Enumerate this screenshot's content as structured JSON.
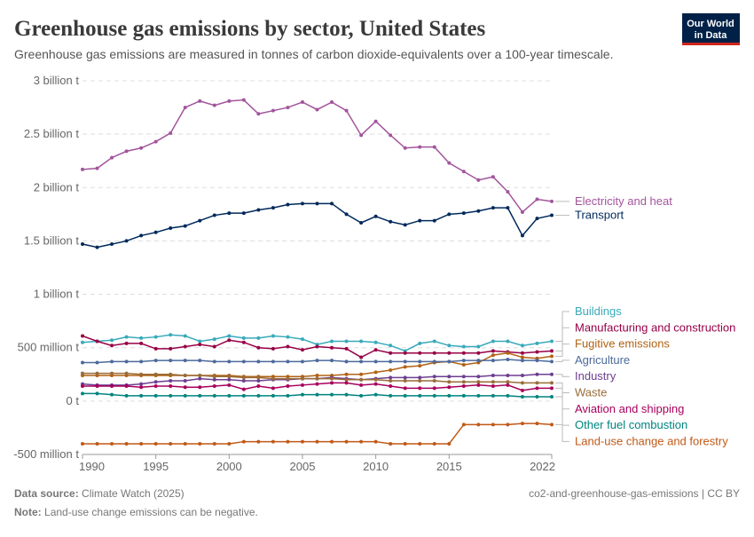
{
  "chart_data": {
    "type": "line",
    "title": "Greenhouse gas emissions by sector, United States",
    "subtitle": "Greenhouse gas emissions are measured in tonnes of carbon dioxide-equivalents over a 100-year timescale.",
    "source_label": "Data source:",
    "source": "Climate Watch (2025)",
    "note_label": "Note:",
    "note": "Land-use change emissions can be negative.",
    "credit": "co2-and-greenhouse-gas-emissions | CC BY",
    "logo": [
      "Our World",
      "in Data"
    ],
    "x": [
      1990,
      1991,
      1992,
      1993,
      1994,
      1995,
      1996,
      1997,
      1998,
      1999,
      2000,
      2001,
      2002,
      2003,
      2004,
      2005,
      2006,
      2007,
      2008,
      2009,
      2010,
      2011,
      2012,
      2013,
      2014,
      2015,
      2016,
      2017,
      2018,
      2019,
      2020,
      2021,
      2022
    ],
    "xlim": [
      1990,
      2022
    ],
    "xticks": [
      1990,
      1995,
      2000,
      2005,
      2010,
      2015,
      2022
    ],
    "ylim": [
      -500000000.0,
      3000000000.0
    ],
    "yticks": [
      {
        "value": -500000000.0,
        "label": "-500 million t"
      },
      {
        "value": 0,
        "label": "0 t"
      },
      {
        "value": 500000000.0,
        "label": "500 million t"
      },
      {
        "value": 1000000000.0,
        "label": "1 billion t"
      },
      {
        "value": 1500000000.0,
        "label": "1.5 billion t"
      },
      {
        "value": 2000000000.0,
        "label": "2 billion t"
      },
      {
        "value": 2500000000.0,
        "label": "2.5 billion t"
      },
      {
        "value": 3000000000.0,
        "label": "3 billion t"
      }
    ],
    "grid": true,
    "series": [
      {
        "name": "Electricity and heat",
        "color": "#a2559c",
        "values": [
          2170000000.0,
          2180000000.0,
          2280000000.0,
          2340000000.0,
          2370000000.0,
          2430000000.0,
          2510000000.0,
          2750000000.0,
          2810000000.0,
          2770000000.0,
          2810000000.0,
          2820000000.0,
          2690000000.0,
          2720000000.0,
          2750000000.0,
          2800000000.0,
          2730000000.0,
          2800000000.0,
          2720000000.0,
          2490000000.0,
          2620000000.0,
          2490000000.0,
          2370000000.0,
          2380000000.0,
          2380000000.0,
          2230000000.0,
          2150000000.0,
          2070000000.0,
          2100000000.0,
          1960000000.0,
          1770000000.0,
          1890000000.0,
          1870000000.0
        ]
      },
      {
        "name": "Transport",
        "color": "#00295b",
        "values": [
          1470000000.0,
          1440000000.0,
          1470000000.0,
          1500000000.0,
          1550000000.0,
          1580000000.0,
          1620000000.0,
          1640000000.0,
          1690000000.0,
          1740000000.0,
          1760000000.0,
          1760000000.0,
          1790000000.0,
          1810000000.0,
          1840000000.0,
          1850000000.0,
          1850000000.0,
          1850000000.0,
          1750000000.0,
          1670000000.0,
          1730000000.0,
          1680000000.0,
          1650000000.0,
          1690000000.0,
          1690000000.0,
          1750000000.0,
          1760000000.0,
          1780000000.0,
          1810000000.0,
          1810000000.0,
          1550000000.0,
          1710000000.0,
          1740000000.0
        ]
      },
      {
        "name": "Buildings",
        "color": "#38aaba",
        "values": [
          550000000.0,
          560000000.0,
          570000000.0,
          600000000.0,
          590000000.0,
          600000000.0,
          620000000.0,
          610000000.0,
          560000000.0,
          580000000.0,
          610000000.0,
          590000000.0,
          590000000.0,
          610000000.0,
          600000000.0,
          580000000.0,
          530000000.0,
          560000000.0,
          560000000.0,
          560000000.0,
          550000000.0,
          520000000.0,
          470000000.0,
          540000000.0,
          560000000.0,
          520000000.0,
          510000000.0,
          510000000.0,
          560000000.0,
          560000000.0,
          520000000.0,
          540000000.0,
          560000000.0
        ]
      },
      {
        "name": "Manufacturing and construction",
        "color": "#970046",
        "values": [
          610000000.0,
          560000000.0,
          520000000.0,
          540000000.0,
          540000000.0,
          490000000.0,
          490000000.0,
          510000000.0,
          530000000.0,
          510000000.0,
          570000000.0,
          550000000.0,
          500000000.0,
          490000000.0,
          510000000.0,
          480000000.0,
          510000000.0,
          500000000.0,
          490000000.0,
          410000000.0,
          480000000.0,
          450000000.0,
          450000000.0,
          450000000.0,
          450000000.0,
          450000000.0,
          450000000.0,
          450000000.0,
          470000000.0,
          460000000.0,
          450000000.0,
          460000000.0,
          470000000.0
        ]
      },
      {
        "name": "Fugitive emissions",
        "color": "#b16214",
        "values": [
          240000000.0,
          240000000.0,
          240000000.0,
          240000000.0,
          240000000.0,
          240000000.0,
          240000000.0,
          240000000.0,
          240000000.0,
          240000000.0,
          240000000.0,
          230000000.0,
          230000000.0,
          230000000.0,
          230000000.0,
          230000000.0,
          240000000.0,
          240000000.0,
          250000000.0,
          250000000.0,
          270000000.0,
          290000000.0,
          320000000.0,
          330000000.0,
          360000000.0,
          370000000.0,
          340000000.0,
          360000000.0,
          430000000.0,
          450000000.0,
          410000000.0,
          400000000.0,
          420000000.0
        ]
      },
      {
        "name": "Agriculture",
        "color": "#4c6a9c",
        "values": [
          360000000.0,
          360000000.0,
          370000000.0,
          370000000.0,
          370000000.0,
          380000000.0,
          380000000.0,
          380000000.0,
          380000000.0,
          370000000.0,
          370000000.0,
          370000000.0,
          370000000.0,
          370000000.0,
          370000000.0,
          370000000.0,
          380000000.0,
          380000000.0,
          370000000.0,
          370000000.0,
          370000000.0,
          370000000.0,
          370000000.0,
          370000000.0,
          370000000.0,
          370000000.0,
          380000000.0,
          380000000.0,
          380000000.0,
          390000000.0,
          380000000.0,
          380000000.0,
          370000000.0
        ]
      },
      {
        "name": "Industry",
        "color": "#6d3e91",
        "values": [
          160000000.0,
          150000000.0,
          150000000.0,
          150000000.0,
          160000000.0,
          180000000.0,
          190000000.0,
          190000000.0,
          210000000.0,
          200000000.0,
          200000000.0,
          190000000.0,
          190000000.0,
          200000000.0,
          200000000.0,
          210000000.0,
          210000000.0,
          220000000.0,
          210000000.0,
          200000000.0,
          210000000.0,
          220000000.0,
          220000000.0,
          220000000.0,
          230000000.0,
          230000000.0,
          230000000.0,
          230000000.0,
          240000000.0,
          240000000.0,
          240000000.0,
          250000000.0,
          250000000.0
        ]
      },
      {
        "name": "Waste",
        "color": "#996d39",
        "values": [
          260000000.0,
          260000000.0,
          260000000.0,
          260000000.0,
          250000000.0,
          250000000.0,
          250000000.0,
          240000000.0,
          240000000.0,
          230000000.0,
          230000000.0,
          220000000.0,
          220000000.0,
          210000000.0,
          210000000.0,
          210000000.0,
          210000000.0,
          210000000.0,
          200000000.0,
          200000000.0,
          200000000.0,
          190000000.0,
          190000000.0,
          190000000.0,
          190000000.0,
          180000000.0,
          180000000.0,
          180000000.0,
          180000000.0,
          180000000.0,
          170000000.0,
          170000000.0,
          170000000.0
        ]
      },
      {
        "name": "Aviation and shipping",
        "color": "#a8005c",
        "values": [
          140000000.0,
          140000000.0,
          140000000.0,
          140000000.0,
          130000000.0,
          140000000.0,
          140000000.0,
          130000000.0,
          130000000.0,
          140000000.0,
          150000000.0,
          110000000.0,
          140000000.0,
          120000000.0,
          140000000.0,
          150000000.0,
          160000000.0,
          170000000.0,
          170000000.0,
          150000000.0,
          160000000.0,
          140000000.0,
          120000000.0,
          120000000.0,
          120000000.0,
          130000000.0,
          140000000.0,
          150000000.0,
          140000000.0,
          150000000.0,
          100000000.0,
          120000000.0,
          120000000.0
        ]
      },
      {
        "name": "Other fuel combustion",
        "color": "#00847e",
        "values": [
          70000000.0,
          70000000.0,
          60000000.0,
          50000000.0,
          50000000.0,
          50000000.0,
          50000000.0,
          50000000.0,
          50000000.0,
          50000000.0,
          50000000.0,
          50000000.0,
          50000000.0,
          50000000.0,
          50000000.0,
          60000000.0,
          60000000.0,
          60000000.0,
          60000000.0,
          50000000.0,
          60000000.0,
          50000000.0,
          50000000.0,
          50000000.0,
          50000000.0,
          50000000.0,
          50000000.0,
          50000000.0,
          50000000.0,
          50000000.0,
          40000000.0,
          40000000.0,
          40000000.0
        ]
      },
      {
        "name": "Land-use change and forestry",
        "color": "#c05917",
        "values": [
          -400000000.0,
          -400000000.0,
          -400000000.0,
          -400000000.0,
          -400000000.0,
          -400000000.0,
          -400000000.0,
          -400000000.0,
          -400000000.0,
          -400000000.0,
          -400000000.0,
          -380000000.0,
          -380000000.0,
          -380000000.0,
          -380000000.0,
          -380000000.0,
          -380000000.0,
          -380000000.0,
          -380000000.0,
          -380000000.0,
          -380000000.0,
          -400000000.0,
          -400000000.0,
          -400000000.0,
          -400000000.0,
          -400000000.0,
          -220000000.0,
          -220000000.0,
          -220000000.0,
          -220000000.0,
          -210000000.0,
          -210000000.0,
          -220000000.0
        ]
      }
    ]
  }
}
